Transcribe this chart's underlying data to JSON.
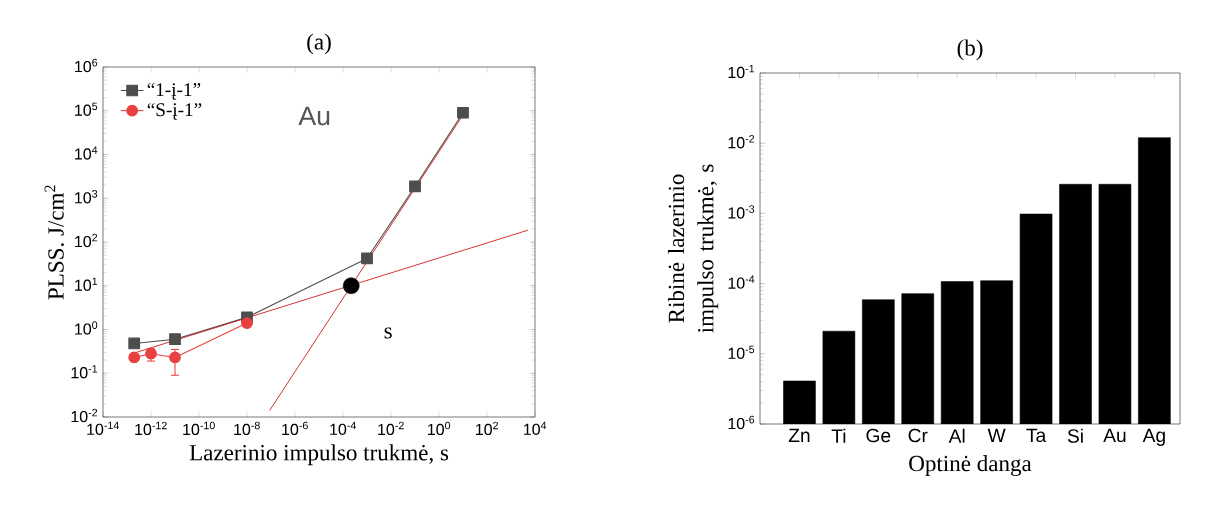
{
  "chart_data": [
    {
      "type": "line",
      "title": "(a)",
      "xlabel": "Lazerinio impulso trukmė, s",
      "ylabel": "PLSS. J/cm$^{2}$",
      "log": "xy",
      "legend": "top left",
      "xlim": [
        1e-14,
        10000.0
      ],
      "ylim": [
        0.01,
        1000000.0
      ],
      "xticks": [
        {
          "value": 1e-14,
          "label": "10$^{-14}$"
        },
        {
          "value": 1e-12,
          "label": "10$^{-12}$"
        },
        {
          "value": 1e-10,
          "label": "10$^{-10}$"
        },
        {
          "value": 1e-08,
          "label": "10$^{-8}$"
        },
        {
          "value": 1e-06,
          "label": "10$^{-6}$"
        },
        {
          "value": 0.0001,
          "label": "10$^{-4}$"
        },
        {
          "value": 0.01,
          "label": "10$^{-2}$"
        },
        {
          "value": 1,
          "label": "10$^{0}$"
        },
        {
          "value": 100,
          "label": "10$^{2}$"
        },
        {
          "value": 10000,
          "label": "10$^{4}$"
        }
      ],
      "yticks": [
        {
          "value": 0.01,
          "label": "10$^{-2}$"
        },
        {
          "value": 0.1,
          "label": "10$^{-1}$"
        },
        {
          "value": 1,
          "label": "10$^{0}$"
        },
        {
          "value": 10,
          "label": "10$^{1}$"
        },
        {
          "value": 100,
          "label": "10$^{2}$"
        },
        {
          "value": 1000,
          "label": "10$^{3}$"
        },
        {
          "value": 10000,
          "label": "10$^{4}$"
        },
        {
          "value": 100000,
          "label": "10$^{5}$"
        },
        {
          "value": 1000000,
          "label": "10$^{6}$"
        }
      ],
      "annotations": [
        "Au",
        "s"
      ],
      "series": [
        {
          "name": "“1-į-1”",
          "color": "#4d4d4d",
          "marker": "square",
          "x": [
            2e-13,
            1e-11,
            1e-08,
            0.001,
            0.1,
            10
          ],
          "values": [
            0.48,
            0.6,
            1.9,
            42,
            1860,
            90000
          ]
        },
        {
          "name": "“S-į-1”",
          "color": "#e8413f",
          "marker": "circle",
          "x": [
            2e-13,
            1e-12,
            1e-11,
            1e-08
          ],
          "values": [
            0.23,
            0.28,
            0.23,
            1.4
          ],
          "errors": [
            null,
            [
              0.19,
              0.36
            ],
            [
              0.09,
              0.35
            ],
            null
          ]
        },
        {
          "type": "line",
          "color": "#cc0000",
          "marker": "none",
          "x": [
            2e-13,
            5000
          ],
          "values": [
            0.29,
            186
          ]
        },
        {
          "type": "line",
          "color": "#cc0000",
          "marker": "none",
          "x": [
            8.7e-08,
            10
          ],
          "values": [
            0.014,
            80000
          ]
        },
        {
          "type": "scatter",
          "color": "#000000",
          "marker": "circle",
          "x": [
            0.00022
          ],
          "values": [
            10
          ]
        }
      ]
    },
    {
      "type": "bar",
      "title": "(b)",
      "xlabel": "Optinė danga",
      "ylabel": "Ribinė lazerinio impulso trukmė, s",
      "log": "y",
      "color": "#000000",
      "categories": [
        "Zn",
        "Ti",
        "Ge",
        "Cr",
        "Al",
        "W",
        "Ta",
        "Si",
        "Au",
        "Ag"
      ],
      "values": [
        4.1e-06,
        2.1e-05,
        5.9e-05,
        7.2e-05,
        0.000107,
        0.00011,
        0.00098,
        0.0026,
        0.0026,
        0.012
      ],
      "ylim": [
        1e-06,
        0.1
      ],
      "yticks": [
        {
          "value": 1e-06,
          "label": "10$^{-6}$"
        },
        {
          "value": 1e-05,
          "label": "10$^{-5}$"
        },
        {
          "value": 0.0001,
          "label": "10$^{-4}$"
        },
        {
          "value": 0.001,
          "label": "10$^{-3}$"
        },
        {
          "value": 0.01,
          "label": "10$^{-2}$"
        },
        {
          "value": 0.1,
          "label": "10$^{-1}$"
        }
      ]
    }
  ]
}
